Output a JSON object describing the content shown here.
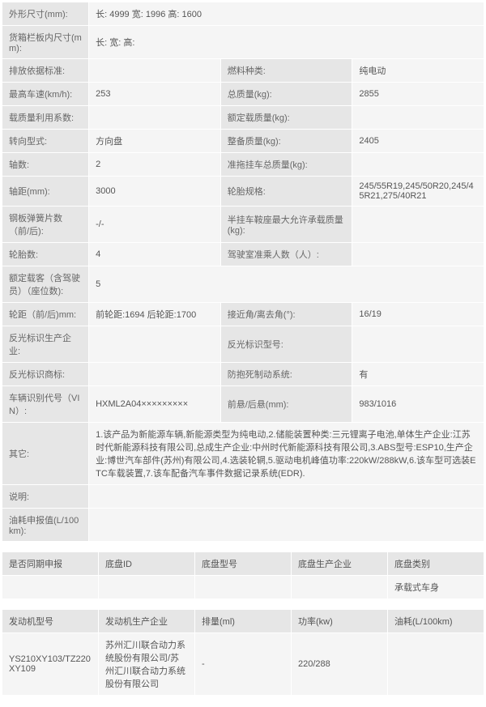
{
  "specs": {
    "r1": {
      "l": "外形尺寸(mm):",
      "v": "长: 4999 宽: 1996 高: 1600"
    },
    "r2": {
      "l": "货箱栏板内尺寸(mm):",
      "v": "长: 宽: 高:"
    },
    "r3": {
      "l1": "排放依据标准:",
      "v1": "",
      "l2": "燃料种类:",
      "v2": "纯电动"
    },
    "r4": {
      "l1": "最高车速(km/h):",
      "v1": "253",
      "l2": "总质量(kg):",
      "v2": "2855"
    },
    "r5": {
      "l1": "载质量利用系数:",
      "v1": "",
      "l2": "额定载质量(kg):",
      "v2": ""
    },
    "r6": {
      "l1": "转向型式:",
      "v1": "方向盘",
      "l2": "整备质量(kg):",
      "v2": "2405"
    },
    "r7": {
      "l1": "轴数:",
      "v1": "2",
      "l2": "准拖挂车总质量(kg):",
      "v2": ""
    },
    "r8": {
      "l1": "轴距(mm):",
      "v1": "3000",
      "l2": "轮胎规格:",
      "v2": "245/55R19,245/50R20,245/45R21,275/40R21"
    },
    "r9": {
      "l1": "钢板弹簧片数（前/后):",
      "v1": "-/-",
      "l2": "半挂车鞍座最大允许承载质量(kg):",
      "v2": ""
    },
    "r10": {
      "l1": "轮胎数:",
      "v1": "4",
      "l2": "驾驶室准乘人数（人）:",
      "v2": ""
    },
    "r11": {
      "l": "额定载客（含驾驶员）（座位数):",
      "v": "5"
    },
    "r12": {
      "l1": "轮距（前/后)mm:",
      "v1": "前轮距:1694 后轮距:1700",
      "l2": "接近角/离去角(°):",
      "v2": "16/19"
    },
    "r13": {
      "l1": "反光标识生产企业:",
      "v1": "",
      "l2": "反光标识型号:",
      "v2": ""
    },
    "r14": {
      "l1": "反光标识商标:",
      "v1": "",
      "l2": "防抱死制动系统:",
      "v2": "有"
    },
    "r15": {
      "l1": "车辆识别代号（VIN）:",
      "v1": "HXML2A04×××××××××",
      "l2": "前悬/后悬(mm):",
      "v2": "983/1016"
    },
    "r16": {
      "l": "其它:",
      "v": "1.该产品为新能源车辆,新能源类型为纯电动,2.储能装置种类:三元锂离子电池,单体生产企业:江苏时代新能源科技有限公司,总成生产企业:中州时代新能源科技有限公司,3.ABS型号:ESP10,生产企业:博世汽车部件(苏州)有限公司,4.选装轮辋,5.驱动电机峰值功率:220kW/288kW,6.该车型可选装ETC车载装置,7.该车配备汽车事件数据记录系统(EDR)."
    },
    "r17": {
      "l": "说明:",
      "v": ""
    },
    "r18": {
      "l": "油耗申报值(L/100km):",
      "v": ""
    }
  },
  "chassis": {
    "h1": "是否同期申报",
    "h2": "底盘ID",
    "h3": "底盘型号",
    "h4": "底盘生产企业",
    "h5": "底盘类别",
    "v1": "",
    "v2": "",
    "v3": "",
    "v4": "",
    "v5": "承载式车身"
  },
  "engine": {
    "h1": "发动机型号",
    "h2": "发动机生产企业",
    "h3": "排量(ml)",
    "h4": "功率(kw)",
    "h5": "油耗(L/100km)",
    "v1": "YS210XY103/TZ220XY109",
    "v2": "苏州汇川联合动力系统股份有限公司/苏州汇川联合动力系统股份有限公司",
    "v3": "-",
    "v4": "220/288",
    "v5": ""
  }
}
